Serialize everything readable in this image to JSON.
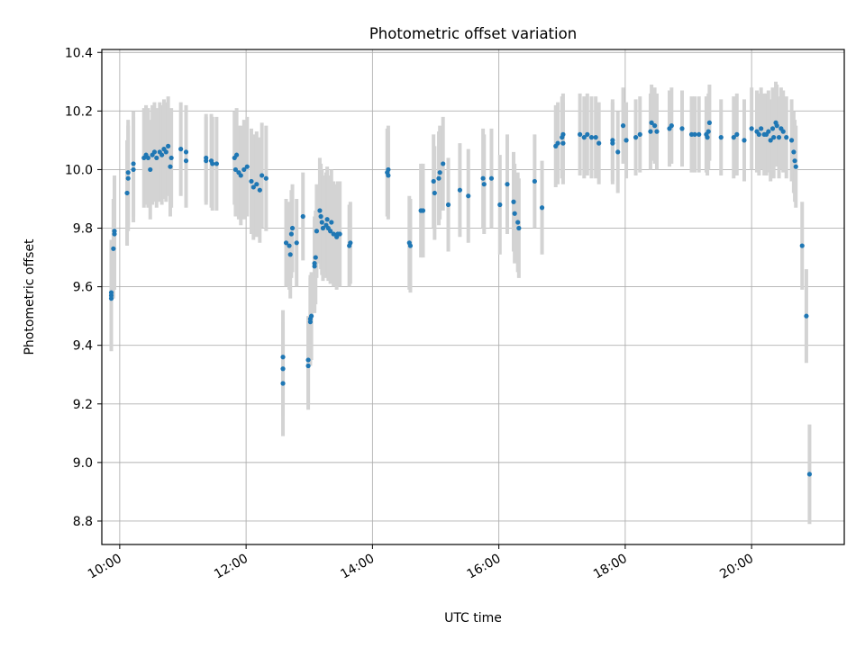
{
  "chart_data": {
    "type": "scatter",
    "title": "Photometric offset variation",
    "xlabel": "UTC time",
    "ylabel": "Photometric offset",
    "xlim": [
      "09:43",
      "21:28"
    ],
    "ylim": [
      8.72,
      10.41
    ],
    "x_ticks": [
      "10:00",
      "12:00",
      "14:00",
      "16:00",
      "18:00",
      "20:00"
    ],
    "y_ticks": [
      8.8,
      9.0,
      9.2,
      9.4,
      9.6,
      9.8,
      10.0,
      10.2,
      10.4
    ],
    "y_tick_labels": [
      "8.8",
      "9.0",
      "9.2",
      "9.4",
      "9.6",
      "9.8",
      "10.0",
      "10.2",
      "10.4"
    ],
    "grid": true,
    "marker_color": "#1f77b4",
    "errorbar_color": "#d3d3d3",
    "points": [
      {
        "t": "09:52",
        "y": 9.57,
        "err": 0.18
      },
      {
        "t": "09:52",
        "y": 9.56,
        "err": 0.18
      },
      {
        "t": "09:52",
        "y": 9.58,
        "err": 0.18
      },
      {
        "t": "09:54",
        "y": 9.73,
        "err": 0.17
      },
      {
        "t": "09:55",
        "y": 9.78,
        "err": 0.19
      },
      {
        "t": "09:55",
        "y": 9.79,
        "err": 0.19
      },
      {
        "t": "10:07",
        "y": 9.92,
        "err": 0.18
      },
      {
        "t": "10:08",
        "y": 9.99,
        "err": 0.18
      },
      {
        "t": "10:08",
        "y": 9.97,
        "err": 0.18
      },
      {
        "t": "10:13",
        "y": 10.0,
        "err": 0.18
      },
      {
        "t": "10:13",
        "y": 10.02,
        "err": 0.18
      },
      {
        "t": "10:23",
        "y": 10.04,
        "err": 0.17
      },
      {
        "t": "10:25",
        "y": 10.05,
        "err": 0.17
      },
      {
        "t": "10:27",
        "y": 10.04,
        "err": 0.17
      },
      {
        "t": "10:29",
        "y": 10.0,
        "err": 0.17
      },
      {
        "t": "10:31",
        "y": 10.05,
        "err": 0.17
      },
      {
        "t": "10:33",
        "y": 10.06,
        "err": 0.17
      },
      {
        "t": "10:35",
        "y": 10.04,
        "err": 0.17
      },
      {
        "t": "10:38",
        "y": 10.06,
        "err": 0.17
      },
      {
        "t": "10:40",
        "y": 10.05,
        "err": 0.17
      },
      {
        "t": "10:42",
        "y": 10.07,
        "err": 0.17
      },
      {
        "t": "10:44",
        "y": 10.06,
        "err": 0.17
      },
      {
        "t": "10:46",
        "y": 10.08,
        "err": 0.17
      },
      {
        "t": "10:48",
        "y": 10.01,
        "err": 0.17
      },
      {
        "t": "10:49",
        "y": 10.04,
        "err": 0.17
      },
      {
        "t": "10:58",
        "y": 10.07,
        "err": 0.16
      },
      {
        "t": "11:03",
        "y": 10.03,
        "err": 0.16
      },
      {
        "t": "11:03",
        "y": 10.06,
        "err": 0.16
      },
      {
        "t": "11:22",
        "y": 10.04,
        "err": 0.15
      },
      {
        "t": "11:22",
        "y": 10.03,
        "err": 0.15
      },
      {
        "t": "11:27",
        "y": 10.03,
        "err": 0.16
      },
      {
        "t": "11:28",
        "y": 10.02,
        "err": 0.16
      },
      {
        "t": "11:32",
        "y": 10.02,
        "err": 0.16
      },
      {
        "t": "11:49",
        "y": 10.04,
        "err": 0.16
      },
      {
        "t": "11:50",
        "y": 10.0,
        "err": 0.16
      },
      {
        "t": "11:51",
        "y": 10.05,
        "err": 0.16
      },
      {
        "t": "11:53",
        "y": 9.99,
        "err": 0.16
      },
      {
        "t": "11:55",
        "y": 9.98,
        "err": 0.17
      },
      {
        "t": "11:58",
        "y": 10.0,
        "err": 0.17
      },
      {
        "t": "12:01",
        "y": 10.01,
        "err": 0.17
      },
      {
        "t": "12:05",
        "y": 9.96,
        "err": 0.18
      },
      {
        "t": "12:07",
        "y": 9.94,
        "err": 0.18
      },
      {
        "t": "12:10",
        "y": 9.95,
        "err": 0.18
      },
      {
        "t": "12:13",
        "y": 9.93,
        "err": 0.18
      },
      {
        "t": "12:15",
        "y": 9.98,
        "err": 0.18
      },
      {
        "t": "12:19",
        "y": 9.97,
        "err": 0.18
      },
      {
        "t": "12:35",
        "y": 9.36,
        "err": 0.16
      },
      {
        "t": "12:35",
        "y": 9.32,
        "err": 0.16
      },
      {
        "t": "12:35",
        "y": 9.27,
        "err": 0.18
      },
      {
        "t": "12:38",
        "y": 9.75,
        "err": 0.15
      },
      {
        "t": "12:41",
        "y": 9.74,
        "err": 0.15
      },
      {
        "t": "12:42",
        "y": 9.71,
        "err": 0.15
      },
      {
        "t": "12:43",
        "y": 9.78,
        "err": 0.15
      },
      {
        "t": "12:44",
        "y": 9.8,
        "err": 0.15
      },
      {
        "t": "12:48",
        "y": 9.75,
        "err": 0.15
      },
      {
        "t": "12:54",
        "y": 9.84,
        "err": 0.15
      },
      {
        "t": "12:59",
        "y": 9.35,
        "err": 0.15
      },
      {
        "t": "12:59",
        "y": 9.33,
        "err": 0.15
      },
      {
        "t": "13:01",
        "y": 9.48,
        "err": 0.15
      },
      {
        "t": "13:01",
        "y": 9.49,
        "err": 0.15
      },
      {
        "t": "13:02",
        "y": 9.5,
        "err": 0.15
      },
      {
        "t": "13:05",
        "y": 9.67,
        "err": 0.16
      },
      {
        "t": "13:05",
        "y": 9.68,
        "err": 0.16
      },
      {
        "t": "13:06",
        "y": 9.7,
        "err": 0.16
      },
      {
        "t": "13:07",
        "y": 9.79,
        "err": 0.16
      },
      {
        "t": "13:10",
        "y": 9.86,
        "err": 0.18
      },
      {
        "t": "13:11",
        "y": 9.84,
        "err": 0.18
      },
      {
        "t": "13:12",
        "y": 9.82,
        "err": 0.18
      },
      {
        "t": "13:13",
        "y": 9.8,
        "err": 0.18
      },
      {
        "t": "13:16",
        "y": 9.81,
        "err": 0.18
      },
      {
        "t": "13:17",
        "y": 9.83,
        "err": 0.18
      },
      {
        "t": "13:18",
        "y": 9.8,
        "err": 0.18
      },
      {
        "t": "13:20",
        "y": 9.79,
        "err": 0.18
      },
      {
        "t": "13:21",
        "y": 9.82,
        "err": 0.18
      },
      {
        "t": "13:23",
        "y": 9.78,
        "err": 0.18
      },
      {
        "t": "13:26",
        "y": 9.77,
        "err": 0.18
      },
      {
        "t": "13:27",
        "y": 9.78,
        "err": 0.18
      },
      {
        "t": "13:29",
        "y": 9.78,
        "err": 0.18
      },
      {
        "t": "13:38",
        "y": 9.74,
        "err": 0.14
      },
      {
        "t": "13:39",
        "y": 9.75,
        "err": 0.14
      },
      {
        "t": "14:14",
        "y": 9.99,
        "err": 0.15
      },
      {
        "t": "14:15",
        "y": 10.0,
        "err": 0.15
      },
      {
        "t": "14:15",
        "y": 9.98,
        "err": 0.15
      },
      {
        "t": "14:35",
        "y": 9.75,
        "err": 0.16
      },
      {
        "t": "14:36",
        "y": 9.74,
        "err": 0.16
      },
      {
        "t": "14:46",
        "y": 9.86,
        "err": 0.16
      },
      {
        "t": "14:48",
        "y": 9.86,
        "err": 0.16
      },
      {
        "t": "14:58",
        "y": 9.96,
        "err": 0.16
      },
      {
        "t": "14:59",
        "y": 9.92,
        "err": 0.16
      },
      {
        "t": "15:03",
        "y": 9.97,
        "err": 0.16
      },
      {
        "t": "15:04",
        "y": 9.99,
        "err": 0.16
      },
      {
        "t": "15:07",
        "y": 10.02,
        "err": 0.16
      },
      {
        "t": "15:12",
        "y": 9.88,
        "err": 0.16
      },
      {
        "t": "15:23",
        "y": 9.93,
        "err": 0.16
      },
      {
        "t": "15:31",
        "y": 9.91,
        "err": 0.16
      },
      {
        "t": "15:45",
        "y": 9.97,
        "err": 0.17
      },
      {
        "t": "15:46",
        "y": 9.95,
        "err": 0.17
      },
      {
        "t": "15:53",
        "y": 9.97,
        "err": 0.17
      },
      {
        "t": "16:01",
        "y": 9.88,
        "err": 0.17
      },
      {
        "t": "16:08",
        "y": 9.95,
        "err": 0.17
      },
      {
        "t": "16:14",
        "y": 9.89,
        "err": 0.17
      },
      {
        "t": "16:15",
        "y": 9.85,
        "err": 0.17
      },
      {
        "t": "16:18",
        "y": 9.82,
        "err": 0.17
      },
      {
        "t": "16:19",
        "y": 9.8,
        "err": 0.17
      },
      {
        "t": "16:34",
        "y": 9.96,
        "err": 0.16
      },
      {
        "t": "16:41",
        "y": 9.87,
        "err": 0.16
      },
      {
        "t": "16:54",
        "y": 10.08,
        "err": 0.14
      },
      {
        "t": "16:56",
        "y": 10.09,
        "err": 0.14
      },
      {
        "t": "17:00",
        "y": 10.11,
        "err": 0.14
      },
      {
        "t": "17:01",
        "y": 10.09,
        "err": 0.14
      },
      {
        "t": "17:01",
        "y": 10.12,
        "err": 0.14
      },
      {
        "t": "17:17",
        "y": 10.12,
        "err": 0.14
      },
      {
        "t": "17:21",
        "y": 10.11,
        "err": 0.14
      },
      {
        "t": "17:24",
        "y": 10.12,
        "err": 0.14
      },
      {
        "t": "17:28",
        "y": 10.11,
        "err": 0.14
      },
      {
        "t": "17:32",
        "y": 10.11,
        "err": 0.14
      },
      {
        "t": "17:35",
        "y": 10.09,
        "err": 0.14
      },
      {
        "t": "17:48",
        "y": 10.09,
        "err": 0.14
      },
      {
        "t": "17:48",
        "y": 10.1,
        "err": 0.14
      },
      {
        "t": "17:53",
        "y": 10.06,
        "err": 0.14
      },
      {
        "t": "17:58",
        "y": 10.15,
        "err": 0.13
      },
      {
        "t": "18:01",
        "y": 10.1,
        "err": 0.13
      },
      {
        "t": "18:10",
        "y": 10.11,
        "err": 0.13
      },
      {
        "t": "18:14",
        "y": 10.12,
        "err": 0.13
      },
      {
        "t": "18:24",
        "y": 10.13,
        "err": 0.13
      },
      {
        "t": "18:25",
        "y": 10.16,
        "err": 0.13
      },
      {
        "t": "18:28",
        "y": 10.15,
        "err": 0.13
      },
      {
        "t": "18:30",
        "y": 10.13,
        "err": 0.13
      },
      {
        "t": "18:42",
        "y": 10.14,
        "err": 0.13
      },
      {
        "t": "18:44",
        "y": 10.15,
        "err": 0.13
      },
      {
        "t": "18:54",
        "y": 10.14,
        "err": 0.13
      },
      {
        "t": "19:03",
        "y": 10.12,
        "err": 0.13
      },
      {
        "t": "19:06",
        "y": 10.12,
        "err": 0.13
      },
      {
        "t": "19:10",
        "y": 10.12,
        "err": 0.13
      },
      {
        "t": "19:17",
        "y": 10.12,
        "err": 0.13
      },
      {
        "t": "19:18",
        "y": 10.11,
        "err": 0.13
      },
      {
        "t": "19:19",
        "y": 10.13,
        "err": 0.13
      },
      {
        "t": "19:20",
        "y": 10.16,
        "err": 0.13
      },
      {
        "t": "19:31",
        "y": 10.11,
        "err": 0.13
      },
      {
        "t": "19:43",
        "y": 10.11,
        "err": 0.14
      },
      {
        "t": "19:46",
        "y": 10.12,
        "err": 0.14
      },
      {
        "t": "19:53",
        "y": 10.1,
        "err": 0.14
      },
      {
        "t": "20:00",
        "y": 10.14,
        "err": 0.14
      },
      {
        "t": "20:05",
        "y": 10.13,
        "err": 0.14
      },
      {
        "t": "20:07",
        "y": 10.12,
        "err": 0.14
      },
      {
        "t": "20:09",
        "y": 10.14,
        "err": 0.14
      },
      {
        "t": "20:12",
        "y": 10.12,
        "err": 0.14
      },
      {
        "t": "20:14",
        "y": 10.12,
        "err": 0.14
      },
      {
        "t": "20:16",
        "y": 10.13,
        "err": 0.14
      },
      {
        "t": "20:18",
        "y": 10.1,
        "err": 0.14
      },
      {
        "t": "20:20",
        "y": 10.14,
        "err": 0.14
      },
      {
        "t": "20:21",
        "y": 10.11,
        "err": 0.14
      },
      {
        "t": "20:23",
        "y": 10.16,
        "err": 0.14
      },
      {
        "t": "20:24",
        "y": 10.15,
        "err": 0.14
      },
      {
        "t": "20:26",
        "y": 10.11,
        "err": 0.14
      },
      {
        "t": "20:28",
        "y": 10.14,
        "err": 0.14
      },
      {
        "t": "20:30",
        "y": 10.13,
        "err": 0.14
      },
      {
        "t": "20:33",
        "y": 10.11,
        "err": 0.14
      },
      {
        "t": "20:38",
        "y": 10.1,
        "err": 0.14
      },
      {
        "t": "20:40",
        "y": 10.06,
        "err": 0.14
      },
      {
        "t": "20:41",
        "y": 10.03,
        "err": 0.14
      },
      {
        "t": "20:42",
        "y": 10.01,
        "err": 0.14
      },
      {
        "t": "20:48",
        "y": 9.74,
        "err": 0.15
      },
      {
        "t": "20:52",
        "y": 9.5,
        "err": 0.16
      },
      {
        "t": "20:55",
        "y": 8.96,
        "err": 0.17
      }
    ]
  }
}
